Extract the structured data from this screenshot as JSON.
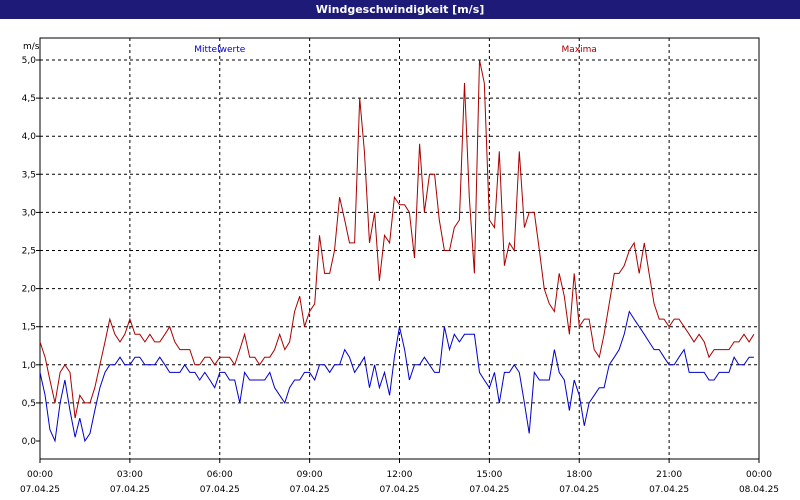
{
  "window": {
    "title": "Windgeschwindigkeit [m/s]"
  },
  "chart_data": {
    "type": "line",
    "title": "Windgeschwindigkeit [m/s]",
    "ylabel": "m/s",
    "ylim": [
      -0.25,
      5.3
    ],
    "yticks": [
      "0,0",
      "0,5",
      "1,0",
      "1,5",
      "2,0",
      "2,5",
      "3,0",
      "3,5",
      "4,0",
      "4,5",
      "5,0"
    ],
    "yticks_values": [
      0,
      0.5,
      1,
      1.5,
      2,
      2.5,
      3,
      3.5,
      4,
      4.5,
      5
    ],
    "xlim_hours": [
      0,
      24
    ],
    "xticks": [
      {
        "time": "00:00",
        "date": "07.04.25"
      },
      {
        "time": "03:00",
        "date": "07.04.25"
      },
      {
        "time": "06:00",
        "date": "07.04.25"
      },
      {
        "time": "09:00",
        "date": "07.04.25"
      },
      {
        "time": "12:00",
        "date": "07.04.25"
      },
      {
        "time": "15:00",
        "date": "07.04.25"
      },
      {
        "time": "18:00",
        "date": "07.04.25"
      },
      {
        "time": "21:00",
        "date": "07.04.25"
      },
      {
        "time": "00:00",
        "date": "08.04.25"
      }
    ],
    "grid": true,
    "legend_placement": "top",
    "series": [
      {
        "name": "Mittelwerte",
        "color": "#0000cc",
        "points": [
          [
            0.0,
            0.9
          ],
          [
            0.17,
            0.6
          ],
          [
            0.33,
            0.15
          ],
          [
            0.5,
            0.0
          ],
          [
            0.67,
            0.5
          ],
          [
            0.83,
            0.8
          ],
          [
            1.0,
            0.4
          ],
          [
            1.17,
            0.05
          ],
          [
            1.33,
            0.3
          ],
          [
            1.5,
            0.0
          ],
          [
            1.67,
            0.1
          ],
          [
            1.83,
            0.4
          ],
          [
            2.0,
            0.7
          ],
          [
            2.17,
            0.9
          ],
          [
            2.33,
            1.0
          ],
          [
            2.5,
            1.0
          ],
          [
            2.67,
            1.1
          ],
          [
            2.83,
            1.0
          ],
          [
            3.0,
            1.0
          ],
          [
            3.17,
            1.1
          ],
          [
            3.33,
            1.1
          ],
          [
            3.5,
            1.0
          ],
          [
            3.67,
            1.0
          ],
          [
            3.83,
            1.0
          ],
          [
            4.0,
            1.1
          ],
          [
            4.17,
            1.0
          ],
          [
            4.33,
            0.9
          ],
          [
            4.5,
            0.9
          ],
          [
            4.67,
            0.9
          ],
          [
            4.83,
            1.0
          ],
          [
            5.0,
            0.9
          ],
          [
            5.17,
            0.9
          ],
          [
            5.33,
            0.8
          ],
          [
            5.5,
            0.9
          ],
          [
            5.67,
            0.8
          ],
          [
            5.83,
            0.7
          ],
          [
            6.0,
            0.9
          ],
          [
            6.17,
            0.9
          ],
          [
            6.33,
            0.8
          ],
          [
            6.5,
            0.8
          ],
          [
            6.67,
            0.5
          ],
          [
            6.83,
            0.9
          ],
          [
            7.0,
            0.8
          ],
          [
            7.17,
            0.8
          ],
          [
            7.33,
            0.8
          ],
          [
            7.5,
            0.8
          ],
          [
            7.67,
            0.9
          ],
          [
            7.83,
            0.7
          ],
          [
            8.0,
            0.6
          ],
          [
            8.17,
            0.5
          ],
          [
            8.33,
            0.7
          ],
          [
            8.5,
            0.8
          ],
          [
            8.67,
            0.8
          ],
          [
            8.83,
            0.9
          ],
          [
            9.0,
            0.9
          ],
          [
            9.17,
            0.8
          ],
          [
            9.33,
            1.0
          ],
          [
            9.5,
            1.0
          ],
          [
            9.67,
            0.9
          ],
          [
            9.83,
            1.0
          ],
          [
            10.0,
            1.0
          ],
          [
            10.17,
            1.2
          ],
          [
            10.33,
            1.1
          ],
          [
            10.5,
            0.9
          ],
          [
            10.67,
            1.0
          ],
          [
            10.83,
            1.1
          ],
          [
            11.0,
            0.7
          ],
          [
            11.17,
            1.0
          ],
          [
            11.33,
            0.7
          ],
          [
            11.5,
            0.9
          ],
          [
            11.67,
            0.6
          ],
          [
            11.83,
            1.1
          ],
          [
            12.0,
            1.5
          ],
          [
            12.17,
            1.2
          ],
          [
            12.33,
            0.8
          ],
          [
            12.5,
            1.0
          ],
          [
            12.67,
            1.0
          ],
          [
            12.83,
            1.1
          ],
          [
            13.0,
            1.0
          ],
          [
            13.17,
            0.9
          ],
          [
            13.33,
            0.9
          ],
          [
            13.5,
            1.5
          ],
          [
            13.67,
            1.2
          ],
          [
            13.83,
            1.4
          ],
          [
            14.0,
            1.3
          ],
          [
            14.17,
            1.4
          ],
          [
            14.33,
            1.4
          ],
          [
            14.5,
            1.4
          ],
          [
            14.67,
            0.9
          ],
          [
            14.83,
            0.8
          ],
          [
            15.0,
            0.7
          ],
          [
            15.17,
            0.9
          ],
          [
            15.33,
            0.5
          ],
          [
            15.5,
            0.9
          ],
          [
            15.67,
            0.9
          ],
          [
            15.83,
            1.0
          ],
          [
            16.0,
            0.9
          ],
          [
            16.17,
            0.5
          ],
          [
            16.33,
            0.1
          ],
          [
            16.5,
            0.9
          ],
          [
            16.67,
            0.8
          ],
          [
            16.83,
            0.8
          ],
          [
            17.0,
            0.8
          ],
          [
            17.17,
            1.2
          ],
          [
            17.33,
            0.9
          ],
          [
            17.5,
            0.8
          ],
          [
            17.67,
            0.4
          ],
          [
            17.83,
            0.8
          ],
          [
            18.0,
            0.6
          ],
          [
            18.17,
            0.2
          ],
          [
            18.33,
            0.5
          ],
          [
            18.5,
            0.6
          ],
          [
            18.67,
            0.7
          ],
          [
            18.83,
            0.7
          ],
          [
            19.0,
            1.0
          ],
          [
            19.17,
            1.1
          ],
          [
            19.33,
            1.2
          ],
          [
            19.5,
            1.4
          ],
          [
            19.67,
            1.7
          ],
          [
            19.83,
            1.6
          ],
          [
            20.0,
            1.5
          ],
          [
            20.17,
            1.4
          ],
          [
            20.33,
            1.3
          ],
          [
            20.5,
            1.2
          ],
          [
            20.67,
            1.2
          ],
          [
            20.83,
            1.1
          ],
          [
            21.0,
            1.0
          ],
          [
            21.17,
            1.0
          ],
          [
            21.33,
            1.1
          ],
          [
            21.5,
            1.2
          ],
          [
            21.67,
            0.9
          ],
          [
            21.83,
            0.9
          ],
          [
            22.0,
            0.9
          ],
          [
            22.17,
            0.9
          ],
          [
            22.33,
            0.8
          ],
          [
            22.5,
            0.8
          ],
          [
            22.67,
            0.9
          ],
          [
            22.83,
            0.9
          ],
          [
            23.0,
            0.9
          ],
          [
            23.17,
            1.1
          ],
          [
            23.33,
            1.0
          ],
          [
            23.5,
            1.0
          ],
          [
            23.67,
            1.1
          ],
          [
            23.83,
            1.1
          ]
        ]
      },
      {
        "name": "Maxima",
        "color": "#aa0000",
        "points": [
          [
            0.0,
            1.3
          ],
          [
            0.17,
            1.1
          ],
          [
            0.33,
            0.8
          ],
          [
            0.5,
            0.5
          ],
          [
            0.67,
            0.9
          ],
          [
            0.83,
            1.0
          ],
          [
            1.0,
            0.9
          ],
          [
            1.17,
            0.3
          ],
          [
            1.33,
            0.6
          ],
          [
            1.5,
            0.5
          ],
          [
            1.67,
            0.5
          ],
          [
            1.83,
            0.7
          ],
          [
            2.0,
            1.0
          ],
          [
            2.17,
            1.3
          ],
          [
            2.33,
            1.6
          ],
          [
            2.5,
            1.4
          ],
          [
            2.67,
            1.3
          ],
          [
            2.83,
            1.4
          ],
          [
            3.0,
            1.6
          ],
          [
            3.17,
            1.4
          ],
          [
            3.33,
            1.4
          ],
          [
            3.5,
            1.3
          ],
          [
            3.67,
            1.4
          ],
          [
            3.83,
            1.3
          ],
          [
            4.0,
            1.3
          ],
          [
            4.17,
            1.4
          ],
          [
            4.33,
            1.5
          ],
          [
            4.5,
            1.3
          ],
          [
            4.67,
            1.2
          ],
          [
            4.83,
            1.2
          ],
          [
            5.0,
            1.2
          ],
          [
            5.17,
            1.0
          ],
          [
            5.33,
            1.0
          ],
          [
            5.5,
            1.1
          ],
          [
            5.67,
            1.1
          ],
          [
            5.83,
            1.0
          ],
          [
            6.0,
            1.1
          ],
          [
            6.17,
            1.1
          ],
          [
            6.33,
            1.1
          ],
          [
            6.5,
            1.0
          ],
          [
            6.67,
            1.2
          ],
          [
            6.83,
            1.4
          ],
          [
            7.0,
            1.1
          ],
          [
            7.17,
            1.1
          ],
          [
            7.33,
            1.0
          ],
          [
            7.5,
            1.1
          ],
          [
            7.67,
            1.1
          ],
          [
            7.83,
            1.2
          ],
          [
            8.0,
            1.4
          ],
          [
            8.17,
            1.2
          ],
          [
            8.33,
            1.3
          ],
          [
            8.5,
            1.7
          ],
          [
            8.67,
            1.9
          ],
          [
            8.83,
            1.5
          ],
          [
            9.0,
            1.7
          ],
          [
            9.17,
            1.8
          ],
          [
            9.33,
            2.7
          ],
          [
            9.5,
            2.2
          ],
          [
            9.67,
            2.2
          ],
          [
            9.83,
            2.5
          ],
          [
            10.0,
            3.2
          ],
          [
            10.17,
            2.9
          ],
          [
            10.33,
            2.6
          ],
          [
            10.5,
            2.6
          ],
          [
            10.67,
            4.5
          ],
          [
            10.83,
            3.8
          ],
          [
            11.0,
            2.6
          ],
          [
            11.17,
            3.0
          ],
          [
            11.33,
            2.1
          ],
          [
            11.5,
            2.7
          ],
          [
            11.67,
            2.6
          ],
          [
            11.83,
            3.2
          ],
          [
            12.0,
            3.1
          ],
          [
            12.17,
            3.1
          ],
          [
            12.33,
            3.0
          ],
          [
            12.5,
            2.4
          ],
          [
            12.67,
            3.9
          ],
          [
            12.83,
            3.0
          ],
          [
            13.0,
            3.5
          ],
          [
            13.17,
            3.5
          ],
          [
            13.33,
            2.9
          ],
          [
            13.5,
            2.5
          ],
          [
            13.67,
            2.5
          ],
          [
            13.83,
            2.8
          ],
          [
            14.0,
            2.9
          ],
          [
            14.17,
            4.7
          ],
          [
            14.33,
            3.2
          ],
          [
            14.5,
            2.2
          ],
          [
            14.67,
            5.0
          ],
          [
            14.83,
            4.7
          ],
          [
            15.0,
            2.9
          ],
          [
            15.17,
            2.8
          ],
          [
            15.33,
            3.8
          ],
          [
            15.5,
            2.3
          ],
          [
            15.67,
            2.6
          ],
          [
            15.83,
            2.5
          ],
          [
            16.0,
            3.8
          ],
          [
            16.17,
            2.8
          ],
          [
            16.33,
            3.0
          ],
          [
            16.5,
            3.0
          ],
          [
            16.67,
            2.5
          ],
          [
            16.83,
            2.0
          ],
          [
            17.0,
            1.8
          ],
          [
            17.17,
            1.7
          ],
          [
            17.33,
            2.2
          ],
          [
            17.5,
            1.9
          ],
          [
            17.67,
            1.4
          ],
          [
            17.83,
            2.2
          ],
          [
            18.0,
            1.5
          ],
          [
            18.17,
            1.6
          ],
          [
            18.33,
            1.6
          ],
          [
            18.5,
            1.2
          ],
          [
            18.67,
            1.1
          ],
          [
            18.83,
            1.4
          ],
          [
            19.0,
            1.8
          ],
          [
            19.17,
            2.2
          ],
          [
            19.33,
            2.2
          ],
          [
            19.5,
            2.3
          ],
          [
            19.67,
            2.5
          ],
          [
            19.83,
            2.6
          ],
          [
            20.0,
            2.2
          ],
          [
            20.17,
            2.6
          ],
          [
            20.33,
            2.2
          ],
          [
            20.5,
            1.8
          ],
          [
            20.67,
            1.6
          ],
          [
            20.83,
            1.6
          ],
          [
            21.0,
            1.5
          ],
          [
            21.17,
            1.6
          ],
          [
            21.33,
            1.6
          ],
          [
            21.5,
            1.5
          ],
          [
            21.67,
            1.4
          ],
          [
            21.83,
            1.3
          ],
          [
            22.0,
            1.4
          ],
          [
            22.17,
            1.3
          ],
          [
            22.33,
            1.1
          ],
          [
            22.5,
            1.2
          ],
          [
            22.67,
            1.2
          ],
          [
            22.83,
            1.2
          ],
          [
            23.0,
            1.2
          ],
          [
            23.17,
            1.3
          ],
          [
            23.33,
            1.3
          ],
          [
            23.5,
            1.4
          ],
          [
            23.67,
            1.3
          ],
          [
            23.83,
            1.4
          ]
        ]
      }
    ]
  }
}
